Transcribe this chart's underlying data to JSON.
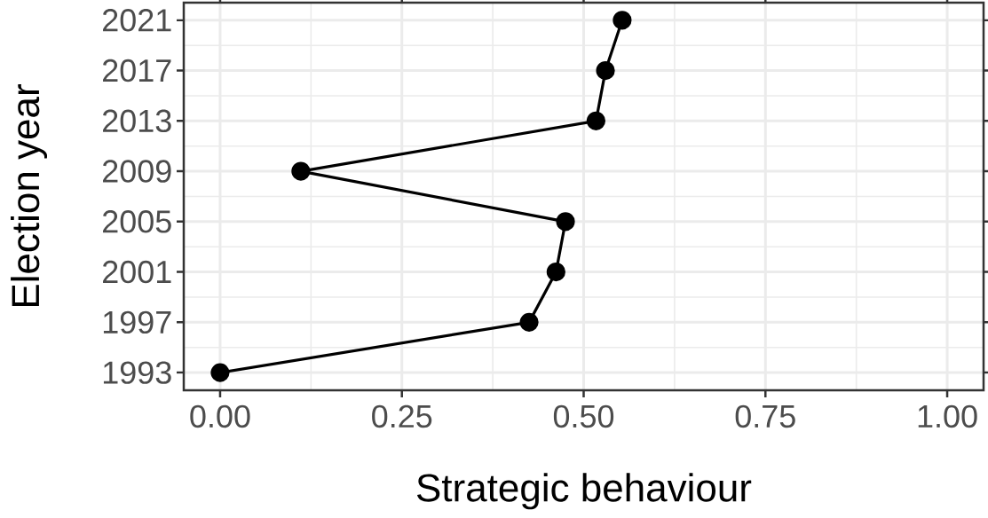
{
  "chart_data": {
    "type": "line",
    "xlabel": "Strategic behaviour",
    "ylabel": "Election year",
    "series": [
      {
        "color": "#000000",
        "x": [
          0.0,
          0.425,
          0.462,
          0.475,
          0.111,
          0.517,
          0.53,
          0.553
        ],
        "values": [
          1993,
          1997,
          2001,
          2005,
          2009,
          2013,
          2017,
          2021
        ]
      }
    ],
    "xlim": [
      -0.05,
      1.05
    ],
    "ylim": [
      1991.6,
      2022.4
    ],
    "xticks": [
      {
        "value": 0,
        "label": "0.00"
      },
      {
        "value": 0.25,
        "label": "0.25"
      },
      {
        "value": 0.5,
        "label": "0.50"
      },
      {
        "value": 0.75,
        "label": "0.75"
      },
      {
        "value": 1,
        "label": "1.00"
      }
    ],
    "yticks": [
      1993,
      1997,
      2001,
      2005,
      2009,
      2013,
      2017,
      2021
    ],
    "grid": true,
    "marker": "circle",
    "line_style": "solid"
  }
}
